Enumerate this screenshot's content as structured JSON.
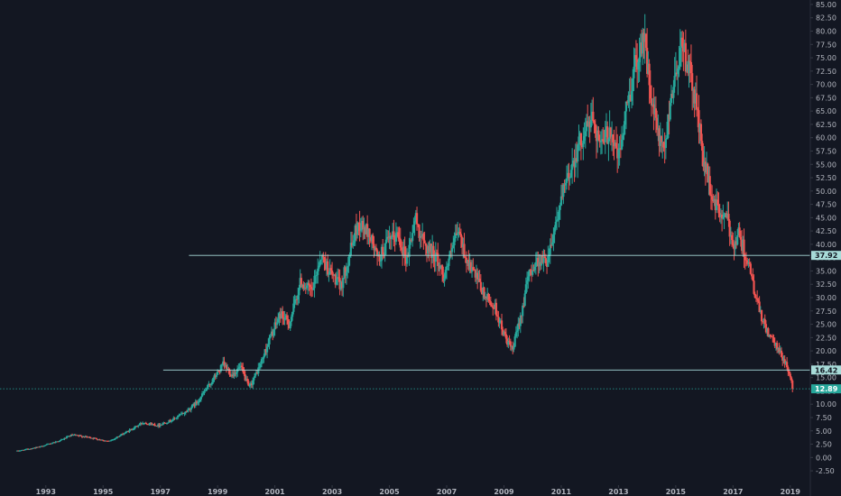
{
  "colors": {
    "background": "#131722",
    "up": "#26a69a",
    "down": "#ef5350",
    "line": "#a8dcd9",
    "axis_text": "#b2b5be",
    "axis_line": "#363a45",
    "marker_bg": "#a8dcd9",
    "marker_text": "#131722",
    "price_tag_bg": "#26a69a"
  },
  "chart_data": {
    "type": "candlestick",
    "title": "",
    "y_axis": {
      "position": "right",
      "ylim": [
        -3.5,
        85.5
      ],
      "ticks": [
        "-2.50",
        "0.00",
        "2.50",
        "5.00",
        "7.50",
        "10.00",
        "12.50",
        "15.00",
        "17.50",
        "20.00",
        "22.50",
        "25.00",
        "27.50",
        "30.00",
        "32.50",
        "35.00",
        "37.50",
        "40.00",
        "42.50",
        "45.00",
        "47.50",
        "50.00",
        "52.50",
        "55.00",
        "57.50",
        "60.00",
        "62.50",
        "65.00",
        "67.50",
        "70.00",
        "72.50",
        "75.00",
        "77.50",
        "80.00",
        "82.50",
        "85.00"
      ]
    },
    "x_axis": {
      "range": [
        1991.4,
        2019.7
      ],
      "ticks": [
        "1993",
        "1995",
        "1997",
        "1999",
        "2001",
        "2003",
        "2005",
        "2007",
        "2009",
        "2011",
        "2013",
        "2015",
        "2017",
        "2019"
      ]
    },
    "grid": false,
    "price_path": [
      [
        1992.0,
        1.2
      ],
      [
        1992.8,
        2.0
      ],
      [
        1993.5,
        3.2
      ],
      [
        1993.9,
        4.2
      ],
      [
        1994.5,
        3.8
      ],
      [
        1995.2,
        3.0
      ],
      [
        1995.9,
        5.0
      ],
      [
        1996.4,
        6.6
      ],
      [
        1996.9,
        6.0
      ],
      [
        1997.4,
        7.0
      ],
      [
        1997.9,
        8.6
      ],
      [
        1998.3,
        10.5
      ],
      [
        1998.7,
        13.5
      ],
      [
        1999.2,
        17.5
      ],
      [
        1999.5,
        15.5
      ],
      [
        1999.8,
        17.0
      ],
      [
        2000.1,
        13.0
      ],
      [
        2000.5,
        17.5
      ],
      [
        2000.8,
        22.0
      ],
      [
        2001.2,
        27.0
      ],
      [
        2001.5,
        25.0
      ],
      [
        2001.9,
        33.0
      ],
      [
        2002.3,
        31.0
      ],
      [
        2002.6,
        38.0
      ],
      [
        2002.9,
        35.0
      ],
      [
        2003.3,
        32.0
      ],
      [
        2003.6,
        38.0
      ],
      [
        2003.9,
        44.0
      ],
      [
        2004.3,
        42.0
      ],
      [
        2004.6,
        37.0
      ],
      [
        2004.9,
        40.0
      ],
      [
        2005.3,
        42.0
      ],
      [
        2005.6,
        37.0
      ],
      [
        2005.9,
        45.0
      ],
      [
        2006.2,
        40.0
      ],
      [
        2006.6,
        38.0
      ],
      [
        2006.9,
        34.0
      ],
      [
        2007.2,
        39.0
      ],
      [
        2007.4,
        42.5
      ],
      [
        2007.7,
        37.0
      ],
      [
        2008.0,
        34.0
      ],
      [
        2008.3,
        30.5
      ],
      [
        2008.7,
        28.0
      ],
      [
        2009.0,
        23.0
      ],
      [
        2009.3,
        20.0
      ],
      [
        2009.6,
        27.0
      ],
      [
        2009.9,
        35.0
      ],
      [
        2010.2,
        37.0
      ],
      [
        2010.5,
        37.0
      ],
      [
        2010.8,
        44.0
      ],
      [
        2011.1,
        50.0
      ],
      [
        2011.5,
        57.0
      ],
      [
        2011.8,
        61.0
      ],
      [
        2012.1,
        64.0
      ],
      [
        2012.4,
        58.0
      ],
      [
        2012.7,
        62.0
      ],
      [
        2013.0,
        56.0
      ],
      [
        2013.3,
        66.0
      ],
      [
        2013.6,
        74.0
      ],
      [
        2013.9,
        80.0
      ],
      [
        2014.1,
        68.0
      ],
      [
        2014.4,
        60.0
      ],
      [
        2014.6,
        56.5
      ],
      [
        2014.8,
        67.0
      ],
      [
        2015.0,
        72.0
      ],
      [
        2015.2,
        78.0
      ],
      [
        2015.4,
        74.0
      ],
      [
        2015.7,
        67.0
      ],
      [
        2015.9,
        58.0
      ],
      [
        2016.2,
        50.0
      ],
      [
        2016.5,
        46.0
      ],
      [
        2016.8,
        44.5
      ],
      [
        2017.0,
        40.0
      ],
      [
        2017.2,
        42.0
      ],
      [
        2017.5,
        37.0
      ],
      [
        2017.8,
        30.0
      ],
      [
        2018.0,
        26.0
      ],
      [
        2018.3,
        22.5
      ],
      [
        2018.6,
        20.0
      ],
      [
        2018.9,
        17.0
      ],
      [
        2019.1,
        12.89
      ]
    ],
    "horizontal_lines": [
      {
        "value": 37.92,
        "label": "37.92",
        "x_start": 1998.0
      },
      {
        "value": 16.42,
        "label": "16.42",
        "x_start": 1997.1
      }
    ],
    "last_price": {
      "value": 12.89,
      "label": "12.89"
    }
  }
}
